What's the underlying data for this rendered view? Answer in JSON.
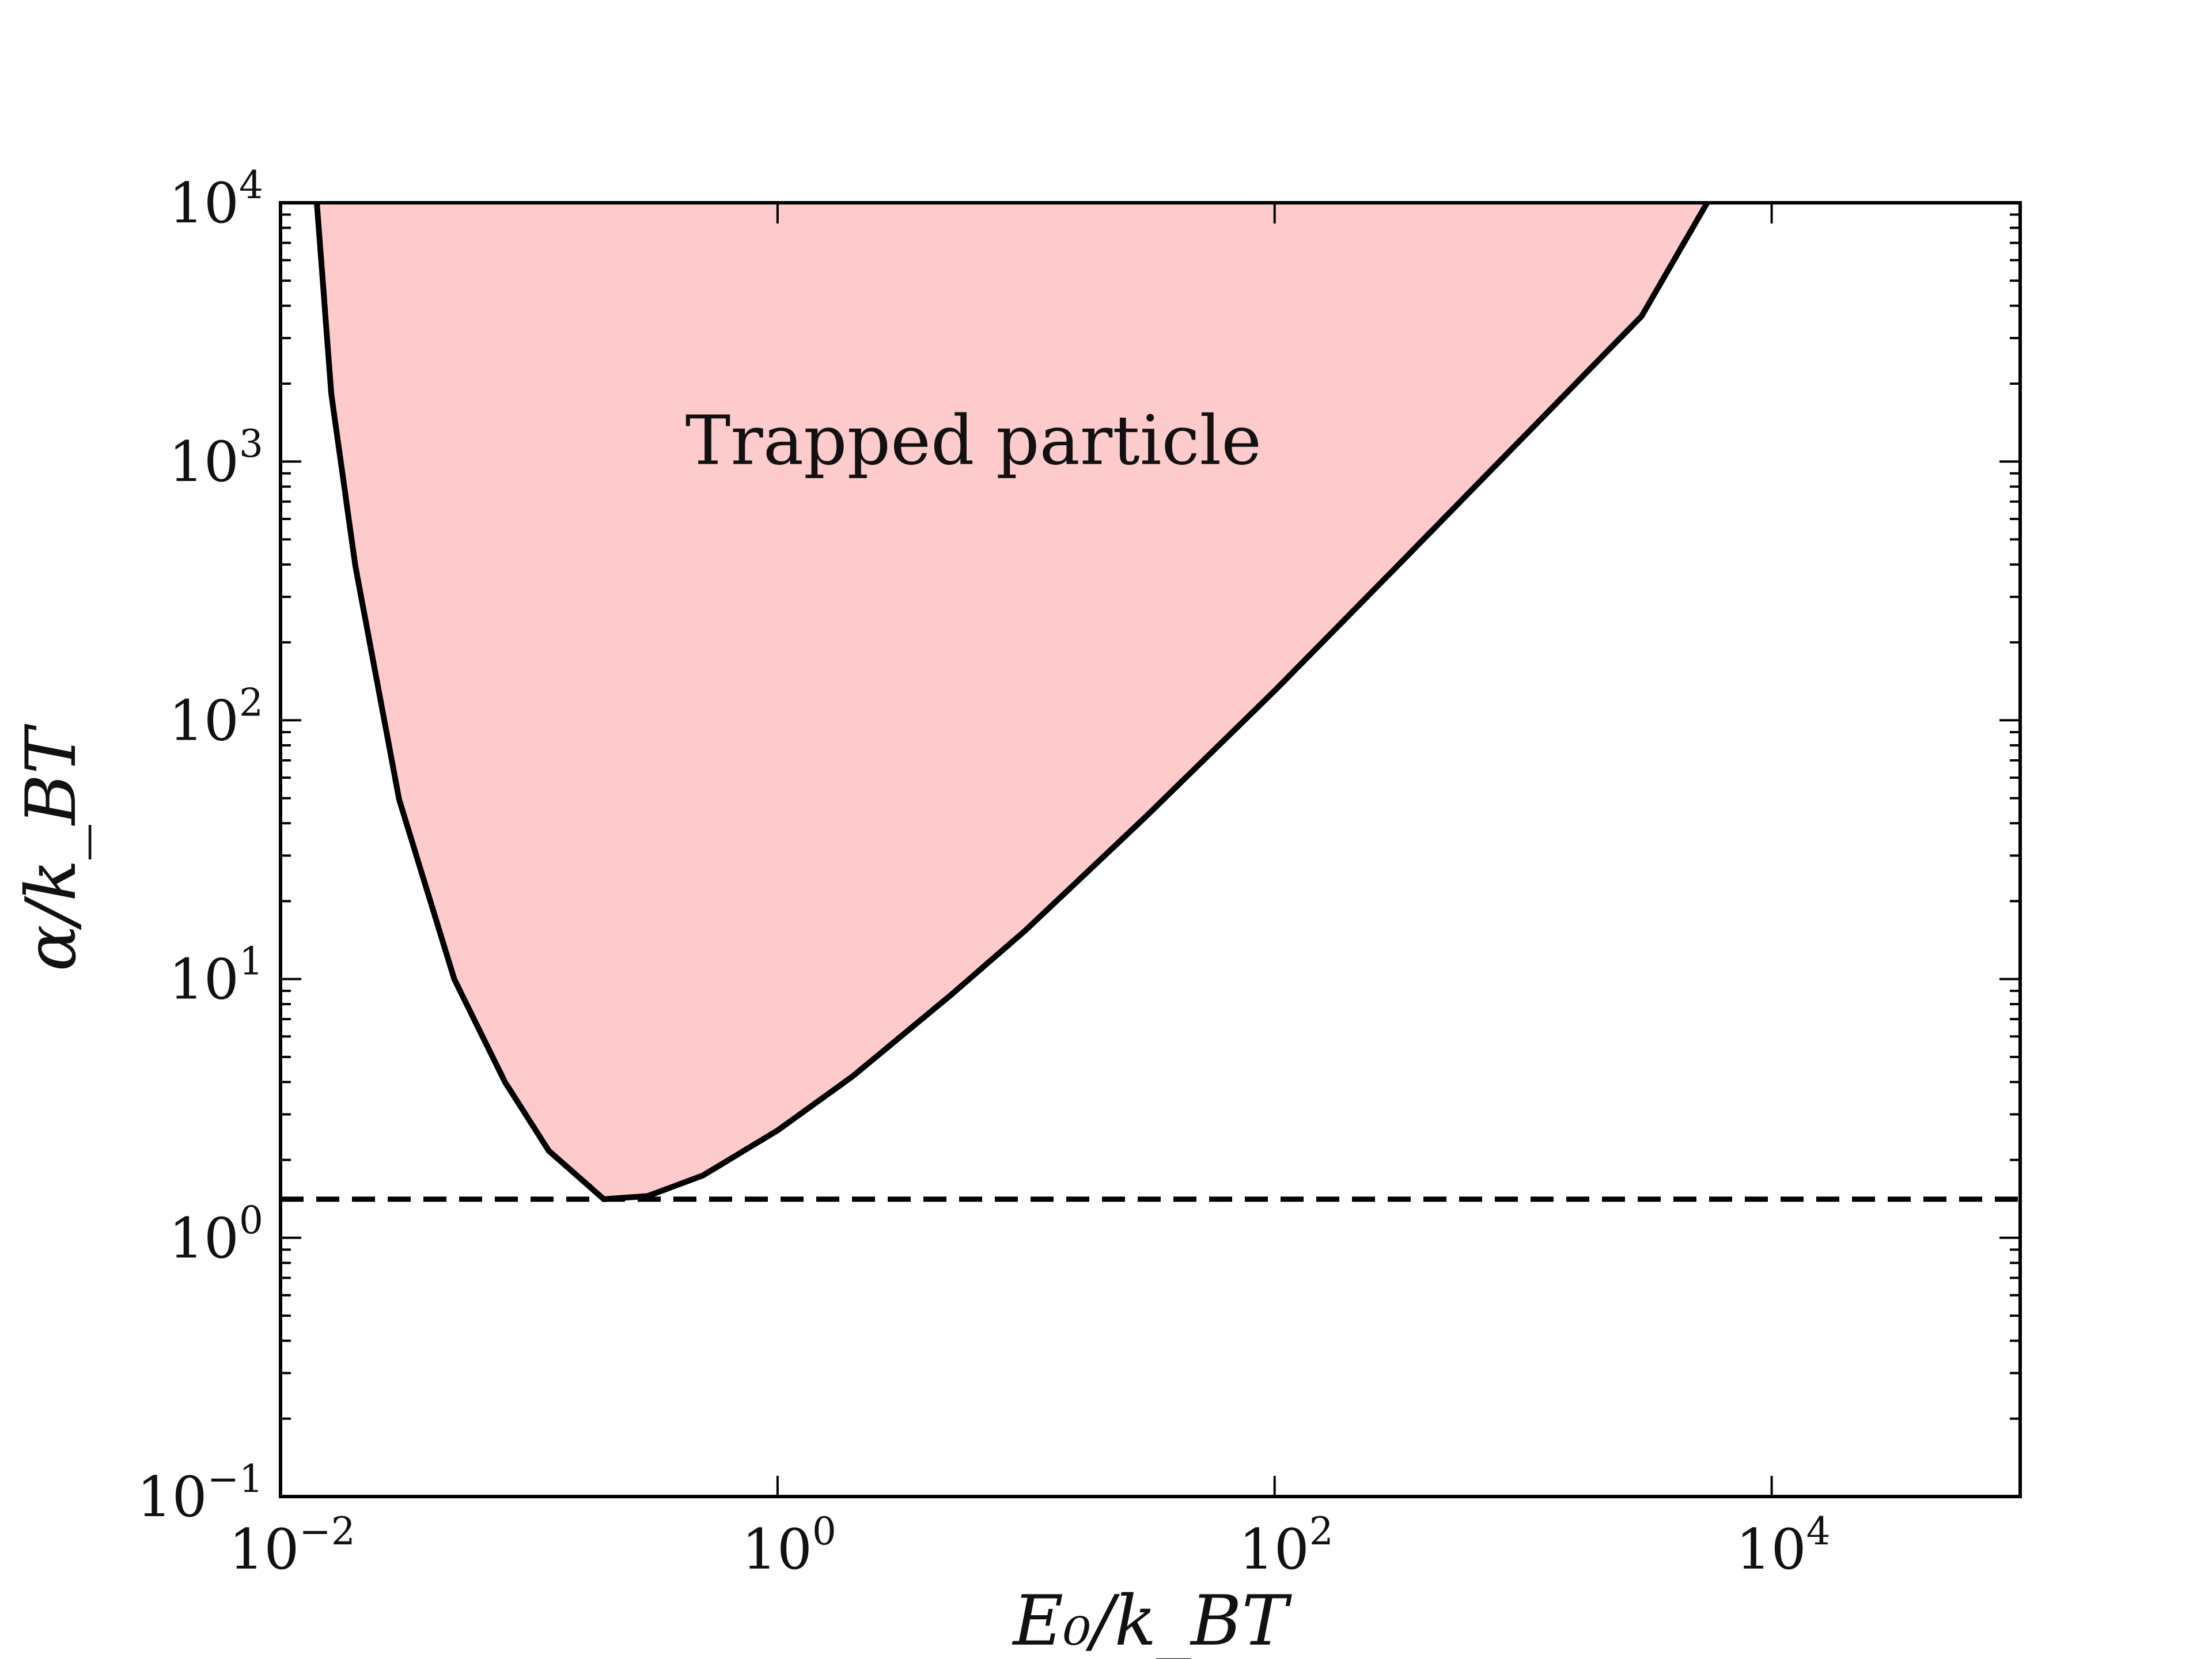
{
  "chart_data": {
    "type": "area",
    "x_scale": "log",
    "y_scale": "log",
    "xlabel": "E₀/k_BT",
    "ylabel": "α/k_BT",
    "xlim": [
      0.01,
      100000
    ],
    "ylim": [
      0.1,
      10000
    ],
    "x_ticks": [
      {
        "value": 0.01,
        "base": "10",
        "exp": "−2"
      },
      {
        "value": 1,
        "base": "10",
        "exp": "0"
      },
      {
        "value": 100,
        "base": "10",
        "exp": "2"
      },
      {
        "value": 10000,
        "base": "10",
        "exp": "4"
      }
    ],
    "y_ticks": [
      {
        "value": 0.1,
        "base": "10",
        "exp": "−1"
      },
      {
        "value": 1,
        "base": "10",
        "exp": "0"
      },
      {
        "value": 10,
        "base": "10",
        "exp": "1"
      },
      {
        "value": 100,
        "base": "10",
        "exp": "2"
      },
      {
        "value": 1000,
        "base": "10",
        "exp": "3"
      },
      {
        "value": 10000,
        "base": "10",
        "exp": "4"
      }
    ],
    "annotations": [
      {
        "text": "Trapped particle",
        "x": 1.0,
        "y": 1200
      }
    ],
    "boundary_curve": {
      "x": [
        0.014,
        0.016,
        0.02,
        0.03,
        0.05,
        0.08,
        0.12,
        0.2,
        0.3,
        0.5,
        1,
        2,
        5,
        10,
        30,
        100,
        300,
        1000,
        3000,
        5500
      ],
      "y": [
        10000,
        1830,
        395,
        49.5,
        10.0,
        4.0,
        2.17,
        1.41,
        1.45,
        1.74,
        2.6,
        4.2,
        8.7,
        15.5,
        42,
        130,
        380,
        1240,
        3650,
        10000
      ]
    },
    "reference_line": {
      "y": 1.41,
      "style": "dashed"
    },
    "colors": {
      "fill": "#fdcbcb",
      "curve": "#000000",
      "reference_line": "#000000",
      "frame": "#000000"
    }
  }
}
